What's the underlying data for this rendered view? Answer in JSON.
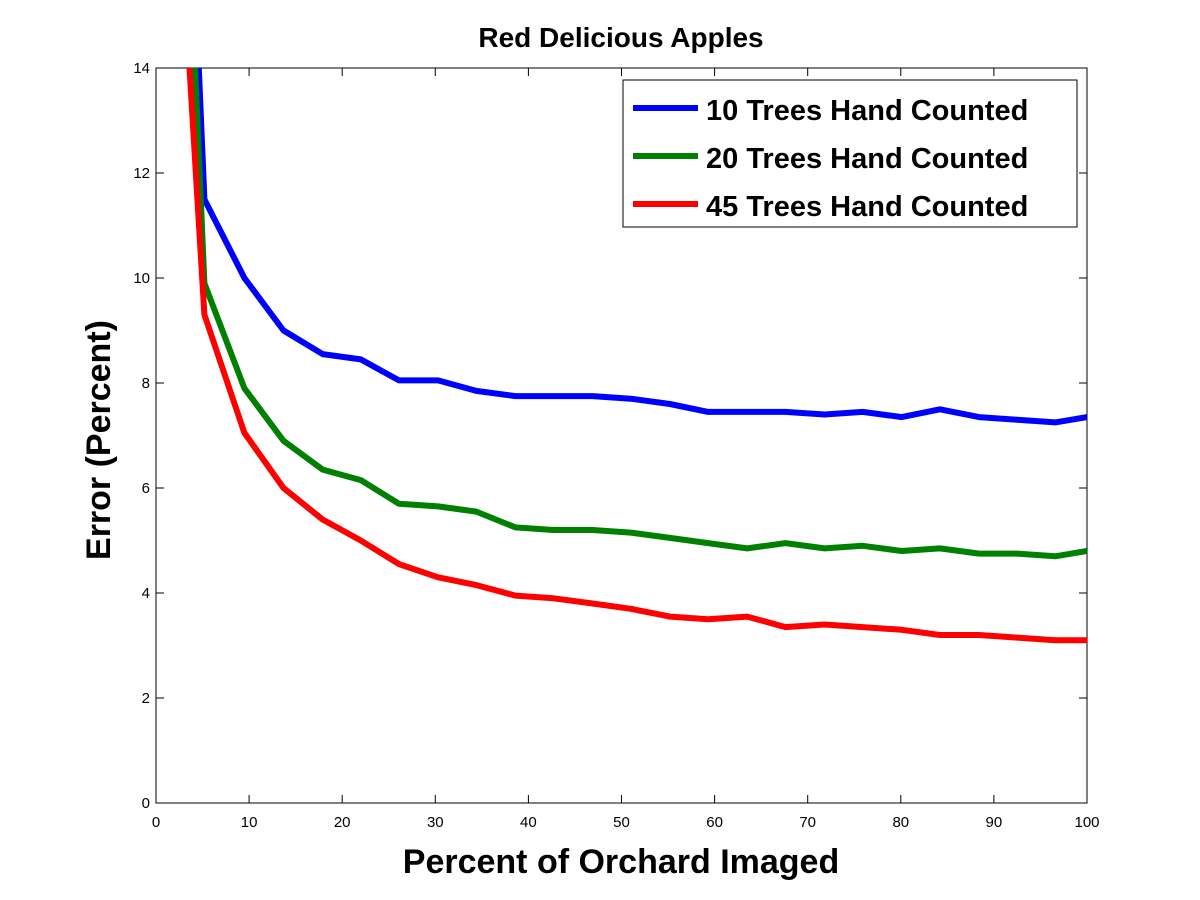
{
  "chart_data": {
    "type": "line",
    "title": "Red Delicious Apples",
    "xlabel": "Percent of Orchard Imaged",
    "ylabel": "Error (Percent)",
    "xlim": [
      0,
      100
    ],
    "ylim": [
      0,
      14
    ],
    "xticks": [
      0,
      10,
      20,
      30,
      40,
      50,
      60,
      70,
      80,
      90,
      100
    ],
    "yticks": [
      0,
      2,
      4,
      6,
      8,
      10,
      12,
      14
    ],
    "grid": false,
    "legend_position": "top-right",
    "series": [
      {
        "name": "10 Trees Hand Counted",
        "color": "#0000ff",
        "x": [
          4.6,
          5.2,
          9.5,
          13.7,
          17.9,
          22.0,
          26.1,
          30.3,
          34.4,
          38.6,
          42.7,
          46.9,
          51.0,
          55.2,
          59.3,
          63.5,
          67.6,
          71.8,
          75.9,
          80.1,
          84.2,
          88.4,
          92.5,
          96.6,
          100
        ],
        "y": [
          14.0,
          11.5,
          10.0,
          9.0,
          8.55,
          8.45,
          8.05,
          8.05,
          7.85,
          7.75,
          7.75,
          7.75,
          7.7,
          7.6,
          7.45,
          7.45,
          7.45,
          7.4,
          7.45,
          7.35,
          7.5,
          7.35,
          7.3,
          7.25,
          7.35
        ]
      },
      {
        "name": "20 Trees Hand Counted",
        "color": "#008000",
        "x": [
          4.2,
          5.2,
          9.5,
          13.7,
          17.9,
          22.0,
          26.1,
          30.3,
          34.4,
          38.6,
          42.7,
          46.9,
          51.0,
          55.2,
          59.3,
          63.5,
          67.6,
          71.8,
          75.9,
          80.1,
          84.2,
          88.4,
          92.5,
          96.6,
          100
        ],
        "y": [
          14.0,
          9.9,
          7.9,
          6.9,
          6.35,
          6.15,
          5.7,
          5.65,
          5.55,
          5.25,
          5.2,
          5.2,
          5.15,
          5.05,
          4.95,
          4.85,
          4.95,
          4.85,
          4.9,
          4.8,
          4.85,
          4.75,
          4.75,
          4.7,
          4.8
        ]
      },
      {
        "name": "45 Trees Hand Counted",
        "color": "#ff0000",
        "x": [
          3.6,
          5.2,
          9.5,
          13.7,
          17.9,
          22.0,
          26.1,
          30.3,
          34.4,
          38.6,
          42.7,
          46.9,
          51.0,
          55.2,
          59.3,
          63.5,
          67.6,
          71.8,
          75.9,
          80.1,
          84.2,
          88.4,
          92.5,
          96.6,
          100
        ],
        "y": [
          14.0,
          9.3,
          7.05,
          6.0,
          5.4,
          5.0,
          4.55,
          4.3,
          4.15,
          3.95,
          3.9,
          3.8,
          3.7,
          3.55,
          3.5,
          3.55,
          3.35,
          3.4,
          3.35,
          3.3,
          3.2,
          3.2,
          3.15,
          3.1,
          3.1
        ]
      }
    ]
  }
}
